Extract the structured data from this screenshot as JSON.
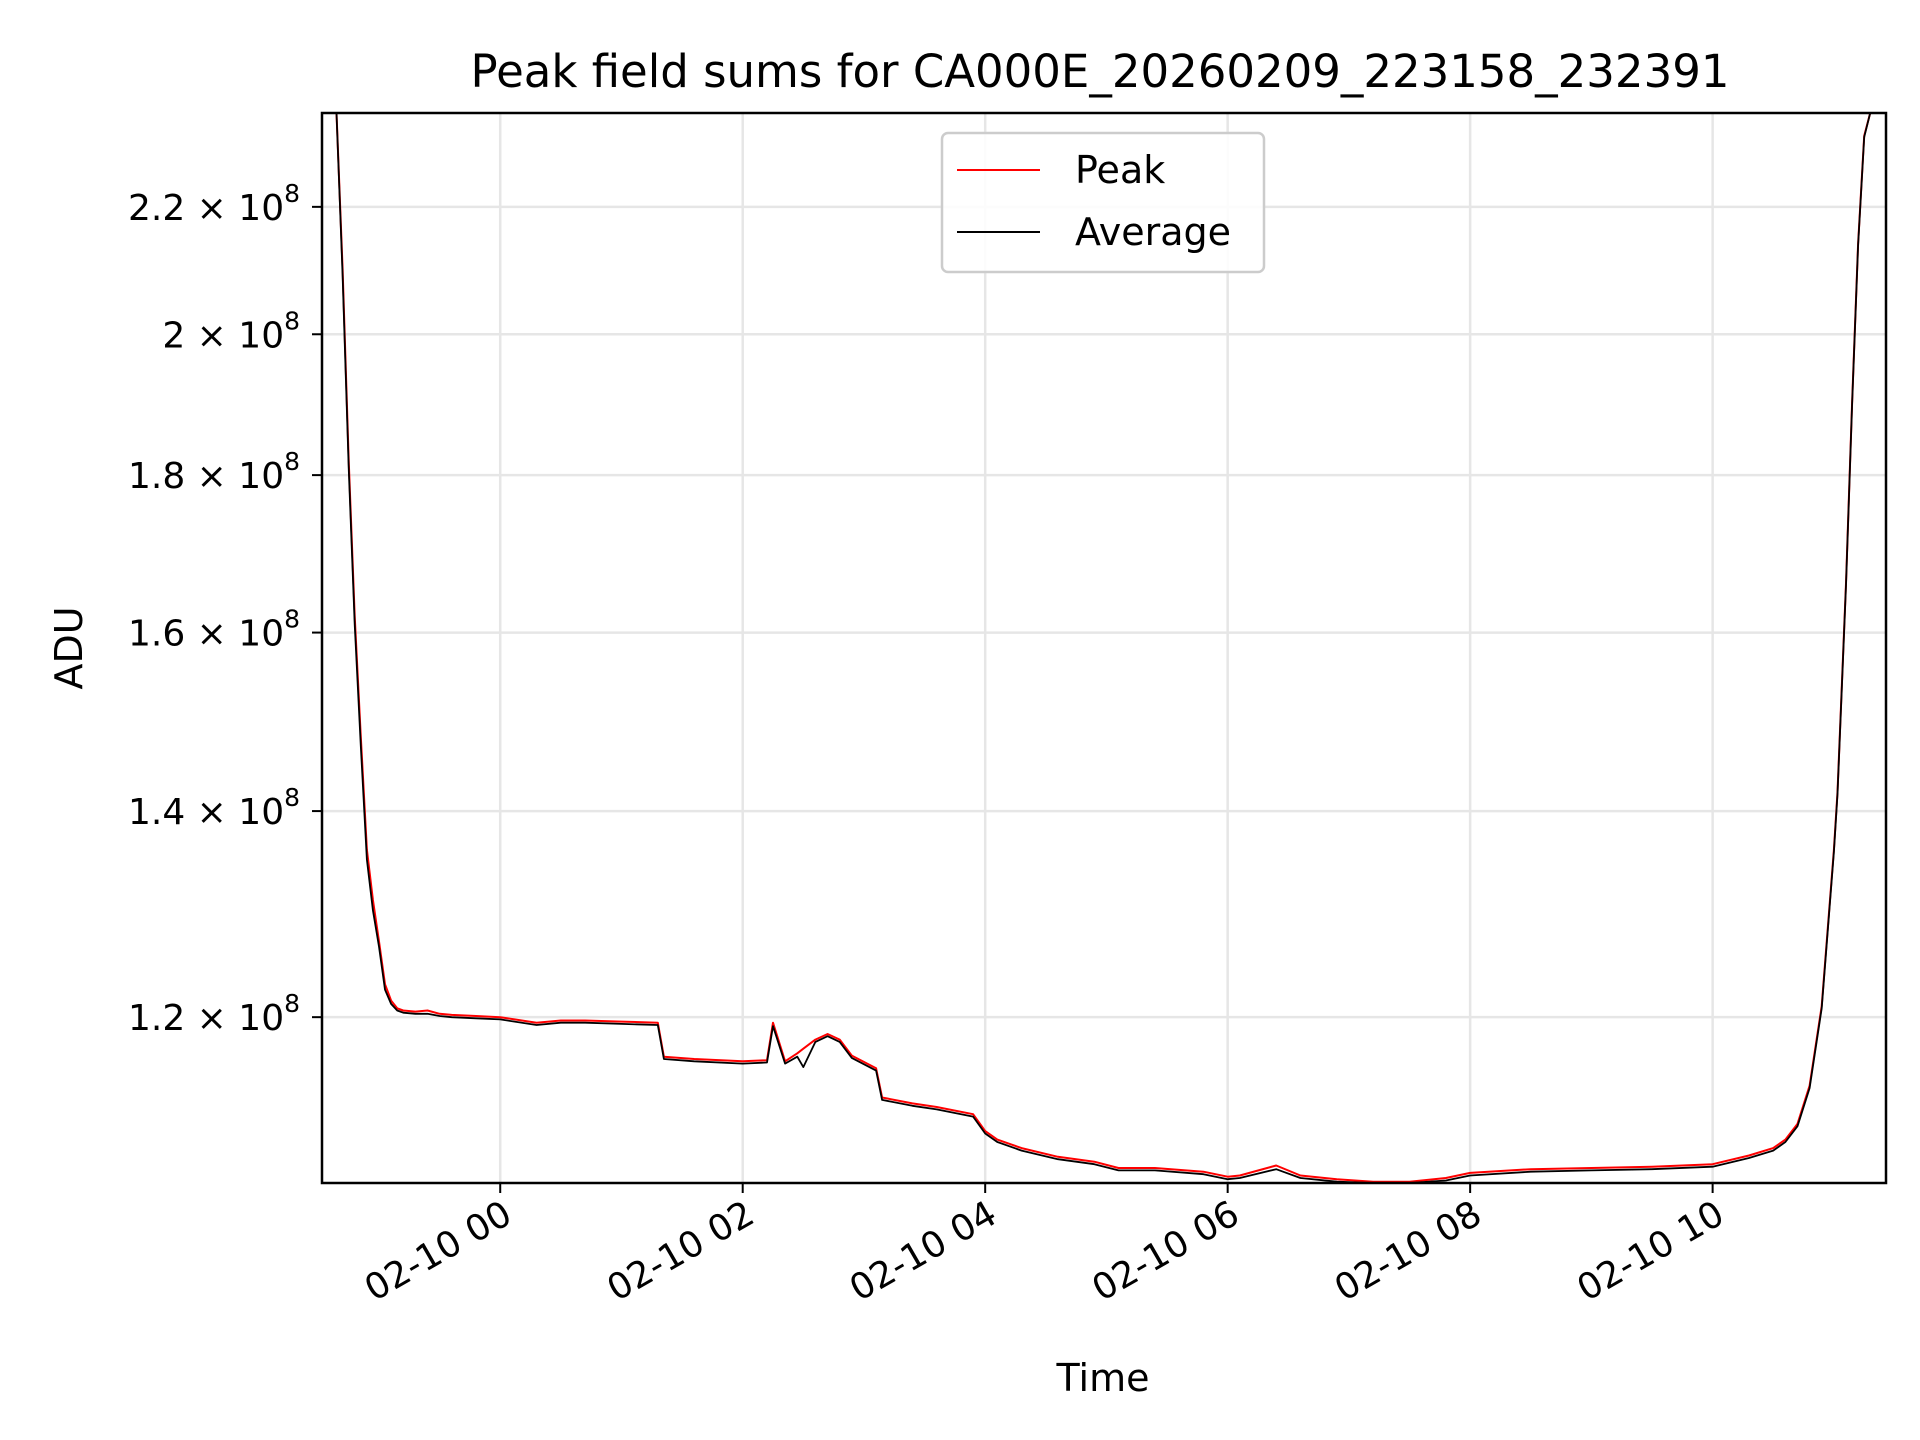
{
  "chart_data": {
    "type": "line",
    "title": "Peak field sums for CA000E_20260209_223158_232391",
    "xlabel": "Time",
    "ylabel": "ADU",
    "y_scale": "log",
    "ylim": [
      106000000,
      236000000
    ],
    "xlim_hours": [
      -1.47,
      11.43
    ],
    "grid": true,
    "legend_position": "upper center",
    "x_ticks": [
      {
        "hour": 0,
        "label": "02-10 00"
      },
      {
        "hour": 2,
        "label": "02-10 02"
      },
      {
        "hour": 4,
        "label": "02-10 04"
      },
      {
        "hour": 6,
        "label": "02-10 06"
      },
      {
        "hour": 8,
        "label": "02-10 08"
      },
      {
        "hour": 10,
        "label": "02-10 10"
      }
    ],
    "y_ticks": [
      {
        "value": 120000000,
        "mantissa": "1.2",
        "times": " × 10",
        "exp": "8"
      },
      {
        "value": 140000000,
        "mantissa": "1.4",
        "times": " × 10",
        "exp": "8"
      },
      {
        "value": 160000000,
        "mantissa": "1.6",
        "times": " × 10",
        "exp": "8"
      },
      {
        "value": 180000000,
        "mantissa": "1.8",
        "times": " × 10",
        "exp": "8"
      },
      {
        "value": 200000000,
        "mantissa": "2",
        "times": " × 10",
        "exp": "8"
      },
      {
        "value": 220000000,
        "mantissa": "2.2",
        "times": " × 10",
        "exp": "8"
      }
    ],
    "series": [
      {
        "name": "Peak",
        "color": "#ff0000",
        "hours": [
          -1.35,
          -1.3,
          -1.25,
          -1.2,
          -1.15,
          -1.1,
          -1.05,
          -1.0,
          -0.95,
          -0.9,
          -0.85,
          -0.8,
          -0.7,
          -0.6,
          -0.5,
          -0.4,
          -0.2,
          0.0,
          0.3,
          0.5,
          0.7,
          1.0,
          1.3,
          1.35,
          1.6,
          2.0,
          2.2,
          2.25,
          2.35,
          2.45,
          2.5,
          2.6,
          2.7,
          2.8,
          2.9,
          3.1,
          3.15,
          3.4,
          3.6,
          3.9,
          4.0,
          4.1,
          4.3,
          4.6,
          4.9,
          5.1,
          5.4,
          5.8,
          6.0,
          6.1,
          6.4,
          6.6,
          6.9,
          7.2,
          7.5,
          7.8,
          8.0,
          8.5,
          9.0,
          9.5,
          10.0,
          10.3,
          10.5,
          10.6,
          10.7,
          10.8,
          10.9,
          11.0,
          11.03,
          11.1,
          11.15,
          11.2,
          11.25,
          11.3
        ],
        "values": [
          236000000,
          210000000,
          182000000,
          162000000,
          148000000,
          136000000,
          131000000,
          127000000,
          123000000,
          121500000,
          120800000,
          120600000,
          120500000,
          120600000,
          120300000,
          120200000,
          120100000,
          120000000,
          119500000,
          119700000,
          119700000,
          119600000,
          119500000,
          116500000,
          116300000,
          116100000,
          116200000,
          119500000,
          116100000,
          116800000,
          117200000,
          118000000,
          118500000,
          118000000,
          116600000,
          115500000,
          113000000,
          112500000,
          112200000,
          111600000,
          110200000,
          109500000,
          108800000,
          108100000,
          107700000,
          107200000,
          107200000,
          106900000,
          106500000,
          106600000,
          107400000,
          106600000,
          106300000,
          106100000,
          106100000,
          106400000,
          106800000,
          107100000,
          107200000,
          107300000,
          107500000,
          108200000,
          108800000,
          109500000,
          110800000,
          114000000,
          121000000,
          136000000,
          142000000,
          166000000,
          190000000,
          214000000,
          232000000,
          236000000
        ]
      },
      {
        "name": "Average",
        "color": "#000000",
        "hours": [
          -1.35,
          -1.3,
          -1.25,
          -1.2,
          -1.15,
          -1.1,
          -1.05,
          -1.0,
          -0.95,
          -0.9,
          -0.85,
          -0.8,
          -0.7,
          -0.6,
          -0.5,
          -0.4,
          -0.2,
          0.0,
          0.3,
          0.5,
          0.7,
          1.0,
          1.3,
          1.35,
          1.6,
          2.0,
          2.2,
          2.25,
          2.35,
          2.45,
          2.5,
          2.6,
          2.7,
          2.8,
          2.9,
          3.1,
          3.15,
          3.4,
          3.6,
          3.9,
          4.0,
          4.1,
          4.3,
          4.6,
          4.9,
          5.1,
          5.4,
          5.8,
          6.0,
          6.1,
          6.4,
          6.6,
          6.9,
          7.2,
          7.5,
          7.8,
          8.0,
          8.5,
          9.0,
          9.5,
          10.0,
          10.3,
          10.5,
          10.6,
          10.7,
          10.8,
          10.9,
          11.0,
          11.03,
          11.1,
          11.15,
          11.2,
          11.25,
          11.3
        ],
        "values": [
          236000000,
          209000000,
          181000000,
          161000000,
          147000000,
          135000000,
          130000000,
          126500000,
          122500000,
          121200000,
          120600000,
          120400000,
          120300000,
          120300000,
          120100000,
          120000000,
          119900000,
          119800000,
          119300000,
          119500000,
          119500000,
          119400000,
          119300000,
          116300000,
          116100000,
          115900000,
          116000000,
          119200000,
          115900000,
          116500000,
          115600000,
          117800000,
          118300000,
          117800000,
          116400000,
          115300000,
          112800000,
          112300000,
          112000000,
          111400000,
          110000000,
          109300000,
          108600000,
          107900000,
          107500000,
          107000000,
          107000000,
          106700000,
          106300000,
          106400000,
          107100000,
          106400000,
          106100000,
          105900000,
          105900000,
          106200000,
          106600000,
          106900000,
          107000000,
          107100000,
          107300000,
          108000000,
          108600000,
          109300000,
          110600000,
          113800000,
          120800000,
          135800000,
          141800000,
          165800000,
          189800000,
          213800000,
          231800000,
          236000000
        ]
      }
    ]
  }
}
